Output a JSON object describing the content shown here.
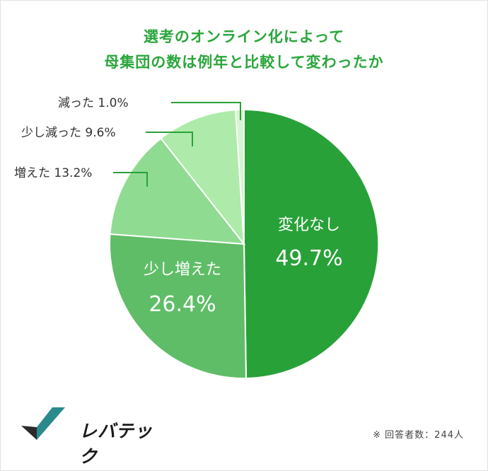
{
  "title": {
    "line1": "選考のオンライン化によって",
    "line2": "母集団の数は例年と比較して変わったか"
  },
  "chart_data": {
    "type": "pie",
    "title": "選考のオンライン化によって母集団の数は例年と比較して変わったか",
    "slices": [
      {
        "label": "変化なし",
        "value": 49.7,
        "display": "49.7%",
        "color": "#29a139"
      },
      {
        "label": "少し増えた",
        "value": 26.4,
        "display": "26.4%",
        "color": "#5fbd67"
      },
      {
        "label": "増えた",
        "value": 13.2,
        "display": "13.2%",
        "color": "#8fdb91"
      },
      {
        "label": "少し減った",
        "value": 9.6,
        "display": "9.6%",
        "color": "#aeeaa9"
      },
      {
        "label": "減った",
        "value": 1.0,
        "display": "1.0%",
        "color": "#d6f5d0"
      }
    ],
    "start": "12 o'clock",
    "direction": "clockwise"
  },
  "logo": {
    "text": "レバテック"
  },
  "footnote": "※ 回答者数：244人"
}
